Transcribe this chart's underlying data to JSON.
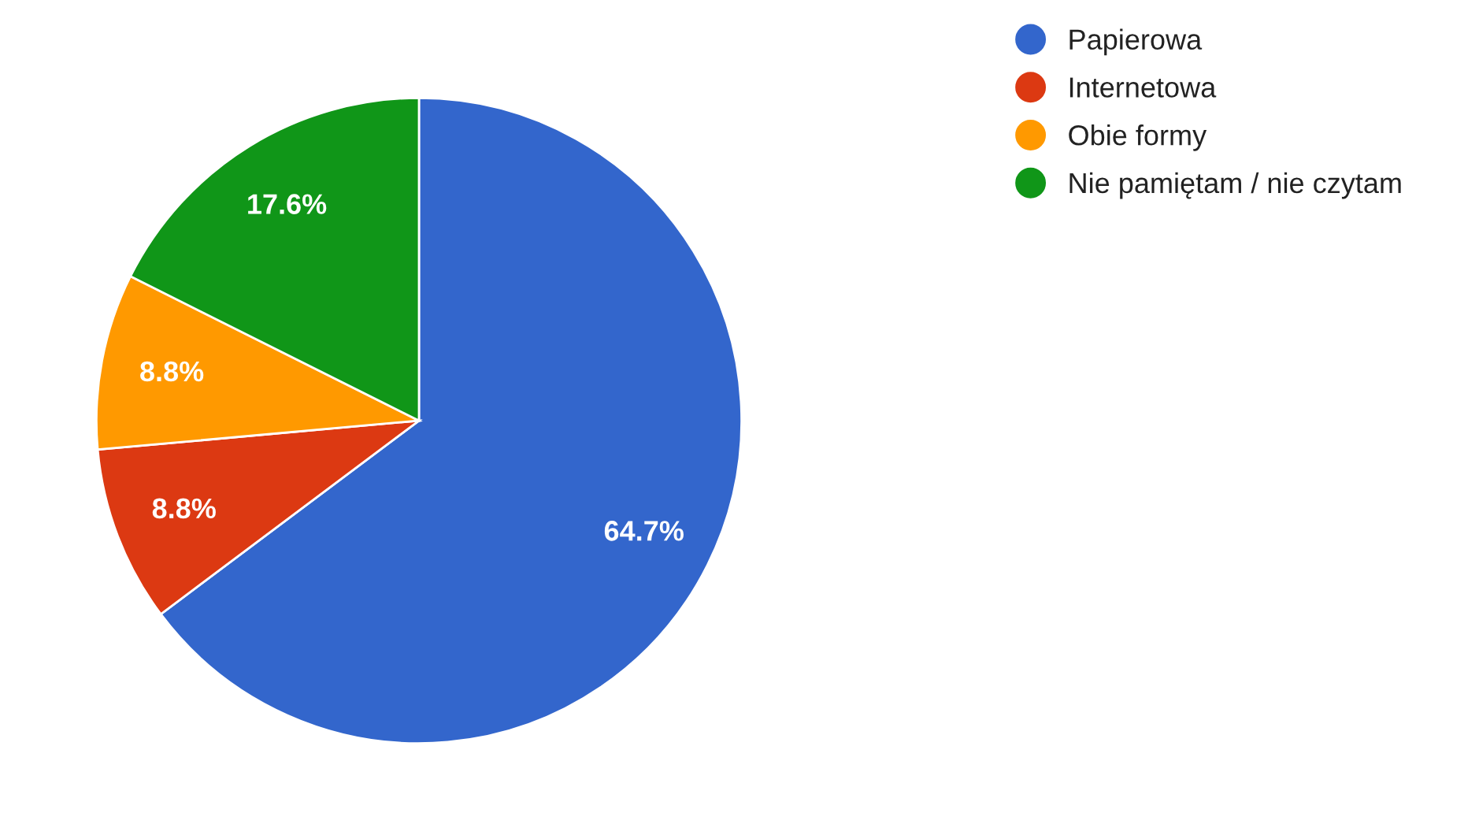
{
  "chart_data": {
    "type": "pie",
    "categories": [
      "Papierowa",
      "Internetowa",
      "Obie formy",
      "Nie pamiętam / nie czytam"
    ],
    "values": [
      64.7,
      8.8,
      8.8,
      17.6
    ],
    "value_labels": [
      "64.7%",
      "8.8%",
      "8.8%",
      "17.6%"
    ],
    "colors": [
      "#3366cc",
      "#dc3912",
      "#ff9900",
      "#109618"
    ],
    "legend": "right"
  }
}
